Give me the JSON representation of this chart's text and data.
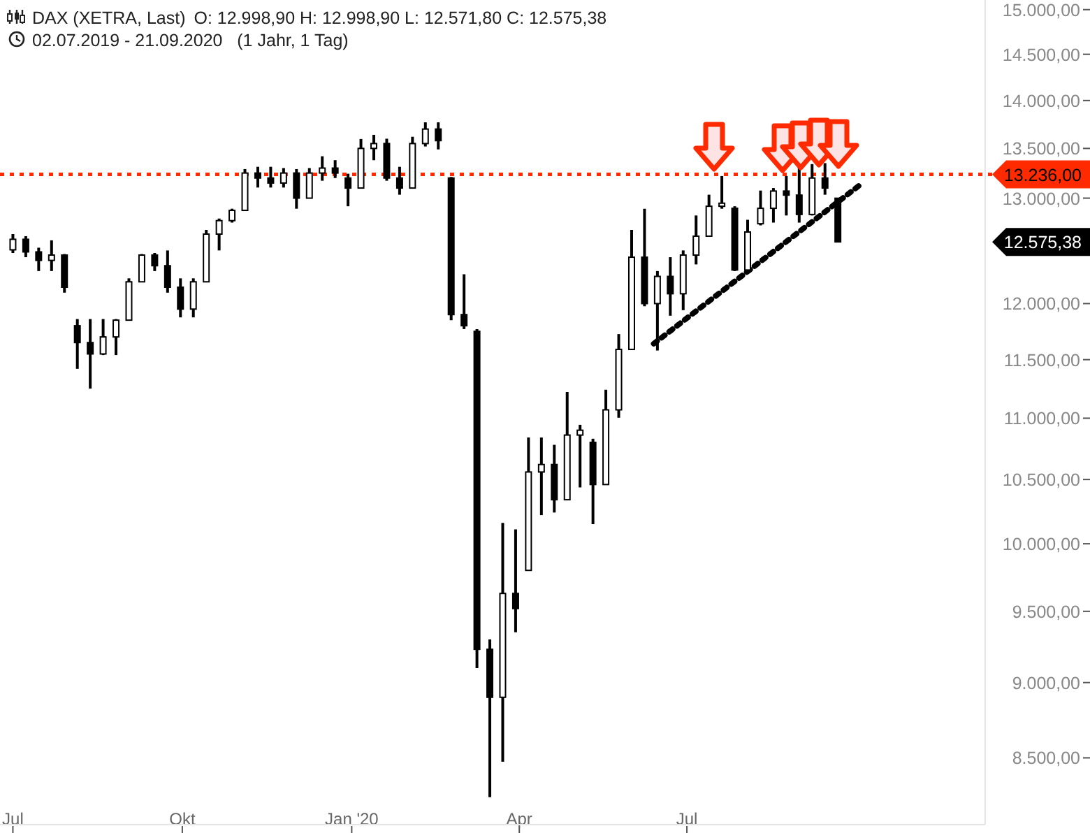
{
  "chart_data": {
    "type": "candlestick",
    "title": "DAX (XETRA, Last)",
    "subtitle": "02.07.2019 - 21.09.2020   (1 Jahr, 1 Tag)",
    "annotations": [
      "O: 12.998,90  H: 12.998,90  L: 12.571,80  C: 12.575,38",
      "12.575,38"
    ],
    "color": "#000000",
    "x": [
      "2019-07-01",
      "2019-07-08",
      "2019-07-15",
      "2019-07-22",
      "2019-07-29",
      "2019-08-05",
      "2019-08-12",
      "2019-08-19",
      "2019-08-26",
      "2019-09-02",
      "2019-09-09",
      "2019-09-16",
      "2019-09-23",
      "2019-09-30",
      "2019-10-07",
      "2019-10-14",
      "2019-10-21",
      "2019-10-28",
      "2019-11-04",
      "2019-11-11",
      "2019-11-18",
      "2019-11-25",
      "2019-12-02",
      "2019-12-09",
      "2019-12-16",
      "2019-12-23",
      "2019-12-30",
      "2020-01-06",
      "2020-01-13",
      "2020-01-20",
      "2020-01-27",
      "2020-02-03",
      "2020-02-10",
      "2020-02-17",
      "2020-02-24",
      "2020-03-02",
      "2020-03-09",
      "2020-03-16",
      "2020-03-23",
      "2020-03-30",
      "2020-04-06",
      "2020-04-13",
      "2020-04-20",
      "2020-04-27",
      "2020-05-04",
      "2020-05-11",
      "2020-05-18",
      "2020-05-25",
      "2020-06-01",
      "2020-06-08",
      "2020-06-15",
      "2020-06-22",
      "2020-06-29",
      "2020-07-06",
      "2020-07-13",
      "2020-07-20",
      "2020-07-27",
      "2020-08-03",
      "2020-08-10",
      "2020-08-17",
      "2020-08-24",
      "2020-08-31",
      "2020-09-07",
      "2020-09-14",
      "2020-09-21"
    ],
    "ohlc": [
      [
        12500,
        12650,
        12470,
        12600
      ],
      [
        12600,
        12630,
        12430,
        12480
      ],
      [
        12480,
        12520,
        12300,
        12400
      ],
      [
        12400,
        12590,
        12300,
        12450
      ],
      [
        12450,
        12460,
        12100,
        12150
      ],
      [
        11800,
        11860,
        11420,
        11650
      ],
      [
        11650,
        11860,
        11250,
        11550
      ],
      [
        11550,
        11860,
        11540,
        11700
      ],
      [
        11700,
        11860,
        11540,
        11850
      ],
      [
        11850,
        12232,
        11850,
        12200
      ],
      [
        12200,
        12460,
        12200,
        12450
      ],
      [
        12450,
        12470,
        12300,
        12350
      ],
      [
        12350,
        12494,
        12100,
        12150
      ],
      [
        12150,
        12232,
        11875,
        11950
      ],
      [
        11950,
        12232,
        11875,
        12200
      ],
      [
        12200,
        12690,
        12200,
        12650
      ],
      [
        12650,
        12800,
        12494,
        12780
      ],
      [
        12780,
        12896,
        12761,
        12880
      ],
      [
        12880,
        13290,
        12880,
        13250
      ],
      [
        13250,
        13313,
        13105,
        13200
      ],
      [
        13200,
        13313,
        13105,
        13150
      ],
      [
        13150,
        13300,
        13105,
        13250
      ],
      [
        13250,
        13290,
        12896,
        13000
      ],
      [
        13000,
        13300,
        13000,
        13250
      ],
      [
        13250,
        13420,
        13173,
        13300
      ],
      [
        13300,
        13380,
        13200,
        13250
      ],
      [
        13200,
        13243,
        12920,
        13100
      ],
      [
        13100,
        13597,
        13100,
        13500
      ],
      [
        13500,
        13640,
        13380,
        13550
      ],
      [
        13550,
        13600,
        13173,
        13200
      ],
      [
        13200,
        13313,
        13034,
        13100
      ],
      [
        13100,
        13620,
        13100,
        13550
      ],
      [
        13550,
        13770,
        13520,
        13700
      ],
      [
        13700,
        13770,
        13490,
        13580
      ],
      [
        13200,
        13210,
        11850,
        11900
      ],
      [
        11900,
        12270,
        11770,
        11800
      ],
      [
        11750,
        11770,
        9100,
        9230
      ],
      [
        9230,
        9300,
        8250,
        8900
      ],
      [
        8900,
        10160,
        8475,
        9630
      ],
      [
        9630,
        10110,
        9350,
        9520
      ],
      [
        9800,
        10840,
        9800,
        10560
      ],
      [
        10560,
        10840,
        10220,
        10620
      ],
      [
        10620,
        10780,
        10240,
        10340
      ],
      [
        10340,
        11220,
        10340,
        10860
      ],
      [
        10860,
        10945,
        10437,
        10900
      ],
      [
        10800,
        10830,
        10150,
        10460
      ],
      [
        10460,
        11240,
        10460,
        11070
      ],
      [
        11070,
        11725,
        11004,
        11590
      ],
      [
        11590,
        12690,
        11590,
        12430
      ],
      [
        12430,
        12896,
        11976,
        12000
      ],
      [
        12000,
        12300,
        11580,
        12250
      ],
      [
        12250,
        12430,
        11890,
        12090
      ],
      [
        12090,
        12494,
        11940,
        12450
      ],
      [
        12450,
        12830,
        12362,
        12630
      ],
      [
        12630,
        13034,
        12627,
        12920
      ],
      [
        12920,
        13220,
        12896,
        12950
      ],
      [
        12900,
        12920,
        12300,
        12310
      ],
      [
        12310,
        12788,
        12300,
        12670
      ],
      [
        12750,
        13075,
        12734,
        12900
      ],
      [
        12900,
        13100,
        12761,
        13070
      ],
      [
        13070,
        13220,
        12830,
        13030
      ],
      [
        13030,
        13313,
        12761,
        12840
      ],
      [
        12840,
        13340,
        12830,
        13200
      ],
      [
        13200,
        13350,
        13034,
        13100
      ],
      [
        12998.9,
        12998.9,
        12571.8,
        12575.38
      ]
    ],
    "series": [
      {
        "type": "line",
        "x": [
          "2020-06-13",
          "2020-10-04"
        ],
        "values": [
          11640,
          13145
        ],
        "color": "#000000",
        "line_style": "dotted"
      }
    ],
    "ref_lines": [
      {
        "axis": "y",
        "value": 13236,
        "label": "13.236,00",
        "color": "#ff2a00",
        "line_style": "dotted"
      }
    ],
    "log": true,
    "ylim": [
      8080,
      15110
    ],
    "yticks": [
      {
        "value": 8500,
        "label": "8.500,00"
      },
      {
        "value": 9000,
        "label": "9.000,00"
      },
      {
        "value": 9500,
        "label": "9.500,00"
      },
      {
        "value": 10000,
        "label": "10.000,00"
      },
      {
        "value": 10500,
        "label": "10.500,00"
      },
      {
        "value": 11000,
        "label": "11.000,00"
      },
      {
        "value": 11500,
        "label": "11.500,00"
      },
      {
        "value": 12000,
        "label": "12.000,00"
      },
      {
        "value": 13000,
        "label": "13.000,00"
      },
      {
        "value": 13500,
        "label": "13.500,00"
      },
      {
        "value": 14000,
        "label": "14.000,00"
      },
      {
        "value": 14500,
        "label": "14.500,00"
      },
      {
        "value": 15000,
        "label": "15.000,00"
      }
    ],
    "xlim": [
      "2019-06-24",
      "2020-12-10"
    ],
    "xticks": [
      {
        "value": "2019-07-01",
        "label": "Jul"
      },
      {
        "value": "2019-10-01",
        "label": "Okt"
      },
      {
        "value": "2020-01-01",
        "label": "Jan '20"
      },
      {
        "value": "2020-04-01",
        "label": "Apr"
      },
      {
        "value": "2020-07-01",
        "label": "Jul"
      }
    ],
    "grid": false
  }
}
